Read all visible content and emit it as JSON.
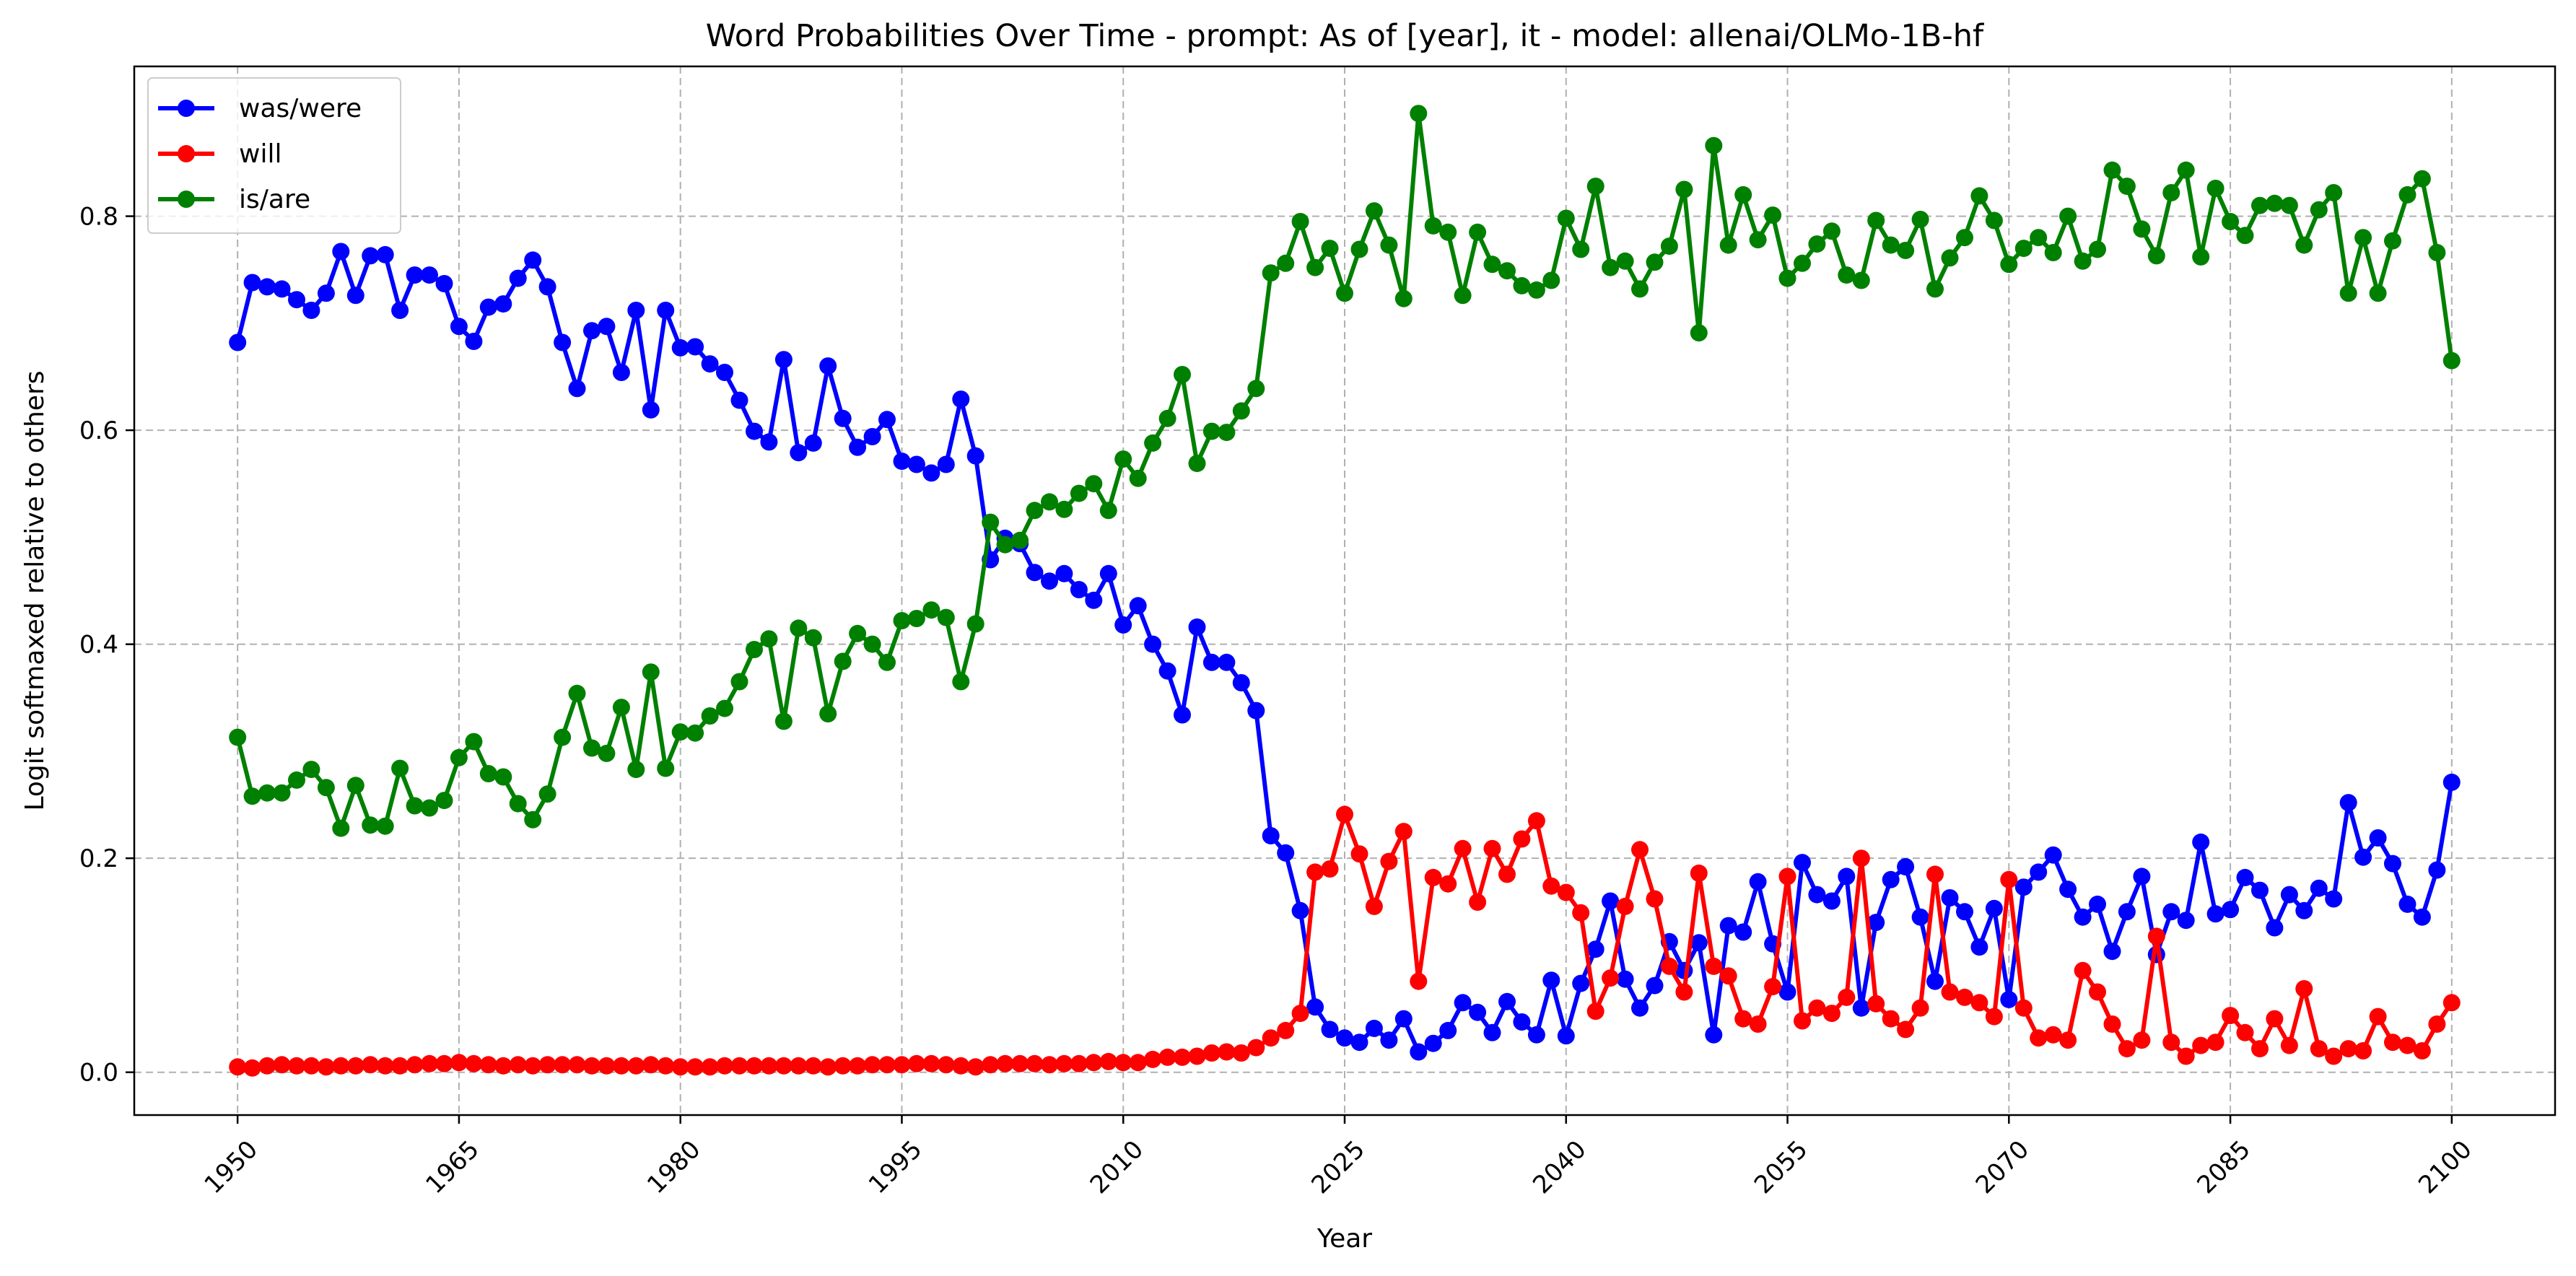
{
  "chart_data": {
    "type": "line",
    "title": "Word Probabilities Over Time - prompt: As of [year], it - model: allenai/OLMo-1B-hf",
    "xlabel": "Year",
    "ylabel": "Logit softmaxed relative to others",
    "xlim": [
      1943,
      2107
    ],
    "ylim": [
      -0.04,
      0.94
    ],
    "xticks": [
      1950,
      1965,
      1980,
      1995,
      2010,
      2025,
      2040,
      2055,
      2070,
      2085,
      2100
    ],
    "xtick_labels": [
      "1950",
      "1965",
      "1980",
      "1995",
      "2010",
      "2025",
      "2040",
      "2055",
      "2070",
      "2085",
      "2100"
    ],
    "yticks": [
      0.0,
      0.2,
      0.4,
      0.6,
      0.8
    ],
    "ytick_labels": [
      "0.0",
      "0.2",
      "0.4",
      "0.6",
      "0.8"
    ],
    "grid": true,
    "legend_position": "top-left",
    "x_start": 1950,
    "x_end": 2100,
    "series": [
      {
        "name": "was/were",
        "color": "#0000ff",
        "values": [
          0.682,
          0.738,
          0.734,
          0.732,
          0.722,
          0.712,
          0.728,
          0.767,
          0.726,
          0.763,
          0.764,
          0.712,
          0.745,
          0.745,
          0.737,
          0.697,
          0.683,
          0.715,
          0.718,
          0.742,
          0.759,
          0.734,
          0.682,
          0.639,
          0.693,
          0.697,
          0.654,
          0.712,
          0.619,
          0.712,
          0.677,
          0.678,
          0.662,
          0.654,
          0.628,
          0.599,
          0.589,
          0.666,
          0.579,
          0.588,
          0.66,
          0.611,
          0.584,
          0.594,
          0.61,
          0.571,
          0.568,
          0.56,
          0.568,
          0.629,
          0.576,
          0.479,
          0.499,
          0.494,
          0.467,
          0.459,
          0.466,
          0.451,
          0.441,
          0.466,
          0.418,
          0.436,
          0.4,
          0.375,
          0.334,
          0.416,
          0.383,
          0.383,
          0.364,
          0.338,
          0.221,
          0.205,
          0.151,
          0.061,
          0.04,
          0.032,
          0.028,
          0.041,
          0.03,
          0.05,
          0.019,
          0.027,
          0.039,
          0.065,
          0.056,
          0.037,
          0.066,
          0.047,
          0.035,
          0.086,
          0.034,
          0.083,
          0.115,
          0.16,
          0.087,
          0.06,
          0.081,
          0.122,
          0.095,
          0.121,
          0.035,
          0.137,
          0.131,
          0.178,
          0.12,
          0.075,
          0.196,
          0.166,
          0.16,
          0.183,
          0.06,
          0.14,
          0.18,
          0.192,
          0.145,
          0.085,
          0.163,
          0.15,
          0.117,
          0.153,
          0.068,
          0.173,
          0.187,
          0.203,
          0.171,
          0.145,
          0.157,
          0.113,
          0.15,
          0.183,
          0.11,
          0.15,
          0.142,
          0.215,
          0.148,
          0.152,
          0.182,
          0.17,
          0.135,
          0.166,
          0.151,
          0.172,
          0.162,
          0.252,
          0.201,
          0.219,
          0.195,
          0.157,
          0.145,
          0.189,
          0.271
        ]
      },
      {
        "name": "will",
        "color": "#ff0000",
        "values": [
          0.005,
          0.004,
          0.006,
          0.007,
          0.006,
          0.006,
          0.005,
          0.006,
          0.006,
          0.007,
          0.006,
          0.006,
          0.007,
          0.008,
          0.008,
          0.009,
          0.008,
          0.007,
          0.006,
          0.007,
          0.006,
          0.007,
          0.007,
          0.007,
          0.006,
          0.006,
          0.006,
          0.006,
          0.007,
          0.006,
          0.005,
          0.005,
          0.005,
          0.006,
          0.006,
          0.006,
          0.006,
          0.006,
          0.006,
          0.006,
          0.005,
          0.006,
          0.006,
          0.007,
          0.007,
          0.007,
          0.008,
          0.008,
          0.007,
          0.006,
          0.005,
          0.007,
          0.008,
          0.008,
          0.008,
          0.007,
          0.008,
          0.008,
          0.009,
          0.01,
          0.009,
          0.009,
          0.012,
          0.014,
          0.014,
          0.015,
          0.018,
          0.019,
          0.018,
          0.023,
          0.032,
          0.039,
          0.055,
          0.187,
          0.19,
          0.241,
          0.204,
          0.155,
          0.197,
          0.225,
          0.085,
          0.182,
          0.176,
          0.209,
          0.159,
          0.209,
          0.185,
          0.218,
          0.235,
          0.174,
          0.168,
          0.149,
          0.057,
          0.088,
          0.155,
          0.208,
          0.162,
          0.099,
          0.075,
          0.186,
          0.099,
          0.09,
          0.05,
          0.045,
          0.08,
          0.183,
          0.048,
          0.06,
          0.055,
          0.07,
          0.2,
          0.064,
          0.05,
          0.04,
          0.06,
          0.185,
          0.075,
          0.07,
          0.065,
          0.052,
          0.18,
          0.06,
          0.032,
          0.035,
          0.03,
          0.095,
          0.075,
          0.045,
          0.022,
          0.03,
          0.127,
          0.028,
          0.015,
          0.025,
          0.028,
          0.053,
          0.037,
          0.022,
          0.05,
          0.025,
          0.078,
          0.022,
          0.015,
          0.022,
          0.02,
          0.052,
          0.028,
          0.025,
          0.02,
          0.045,
          0.065
        ]
      },
      {
        "name": "is/are",
        "color": "#008000",
        "values": [
          0.313,
          0.258,
          0.261,
          0.261,
          0.273,
          0.283,
          0.266,
          0.228,
          0.268,
          0.231,
          0.23,
          0.284,
          0.249,
          0.247,
          0.254,
          0.294,
          0.309,
          0.279,
          0.276,
          0.251,
          0.236,
          0.26,
          0.313,
          0.354,
          0.303,
          0.298,
          0.341,
          0.283,
          0.374,
          0.284,
          0.318,
          0.317,
          0.333,
          0.34,
          0.365,
          0.395,
          0.405,
          0.328,
          0.415,
          0.406,
          0.335,
          0.384,
          0.41,
          0.4,
          0.383,
          0.422,
          0.424,
          0.432,
          0.425,
          0.365,
          0.419,
          0.514,
          0.493,
          0.497,
          0.525,
          0.533,
          0.526,
          0.541,
          0.55,
          0.525,
          0.573,
          0.555,
          0.588,
          0.611,
          0.652,
          0.569,
          0.599,
          0.598,
          0.618,
          0.639,
          0.747,
          0.756,
          0.795,
          0.752,
          0.77,
          0.728,
          0.769,
          0.805,
          0.773,
          0.723,
          0.896,
          0.791,
          0.785,
          0.726,
          0.785,
          0.755,
          0.749,
          0.735,
          0.731,
          0.74,
          0.798,
          0.769,
          0.828,
          0.752,
          0.758,
          0.732,
          0.757,
          0.772,
          0.825,
          0.691,
          0.866,
          0.773,
          0.82,
          0.778,
          0.801,
          0.742,
          0.756,
          0.774,
          0.786,
          0.745,
          0.74,
          0.796,
          0.773,
          0.768,
          0.797,
          0.732,
          0.761,
          0.78,
          0.819,
          0.796,
          0.755,
          0.77,
          0.78,
          0.766,
          0.8,
          0.758,
          0.769,
          0.843,
          0.828,
          0.788,
          0.763,
          0.822,
          0.843,
          0.762,
          0.826,
          0.795,
          0.782,
          0.81,
          0.812,
          0.81,
          0.773,
          0.806,
          0.822,
          0.728,
          0.78,
          0.728,
          0.777,
          0.82,
          0.835,
          0.766,
          0.665
        ]
      }
    ]
  }
}
